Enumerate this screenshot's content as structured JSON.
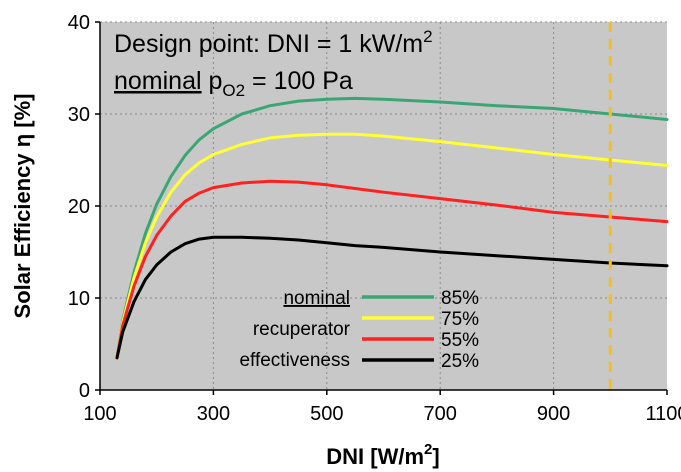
{
  "chart_data": {
    "type": "line",
    "xlabel": "DNI [W/m",
    "xlabel_sup": "2",
    "xlabel_end": "]",
    "ylabel": "Solar Efficiency η [%]",
    "xlim": [
      100,
      1100
    ],
    "ylim": [
      0,
      40
    ],
    "x_ticks": [
      "100",
      "300",
      "500",
      "700",
      "900",
      "1100"
    ],
    "y_ticks": [
      "0",
      "10",
      "20",
      "30",
      "40"
    ],
    "grid": true,
    "background": "#c8c8c8",
    "annotation": {
      "line1": "Design point: DNI = 1 kW/m",
      "line1_sup": "2",
      "line2_underlined": "nominal",
      "line2_p": "p",
      "line2_sub": "O2",
      "line2_rest": " = 100 Pa"
    },
    "design_point": {
      "x": 1000,
      "color": "#f0c020"
    },
    "legend_title": [
      "nominal",
      "recuperator",
      "effectiveness"
    ],
    "series": [
      {
        "name": "85%",
        "color": "#3aa676",
        "x": [
          130,
          140,
          160,
          180,
          200,
          225,
          250,
          275,
          300,
          350,
          400,
          450,
          500,
          550,
          600,
          700,
          800,
          900,
          1000,
          1100
        ],
        "values": [
          3.5,
          7.5,
          12.8,
          17.0,
          20.2,
          23.2,
          25.5,
          27.2,
          28.4,
          30.0,
          30.9,
          31.4,
          31.6,
          31.7,
          31.6,
          31.3,
          30.9,
          30.6,
          30.0,
          29.4
        ]
      },
      {
        "name": "75%",
        "color": "#ffff33",
        "x": [
          130,
          140,
          160,
          180,
          200,
          225,
          250,
          275,
          300,
          350,
          400,
          450,
          500,
          550,
          600,
          700,
          800,
          900,
          1000,
          1100
        ],
        "values": [
          3.5,
          7.3,
          12.2,
          16.0,
          18.8,
          21.5,
          23.4,
          24.7,
          25.6,
          26.7,
          27.4,
          27.7,
          27.8,
          27.8,
          27.6,
          27.0,
          26.3,
          25.6,
          25.0,
          24.4
        ]
      },
      {
        "name": "55%",
        "color": "#ff2020",
        "x": [
          130,
          140,
          160,
          180,
          200,
          225,
          250,
          275,
          300,
          350,
          400,
          450,
          500,
          550,
          600,
          700,
          800,
          900,
          1000,
          1100
        ],
        "values": [
          3.5,
          7.0,
          11.3,
          14.5,
          16.8,
          18.9,
          20.5,
          21.4,
          22.0,
          22.5,
          22.7,
          22.6,
          22.3,
          21.9,
          21.5,
          20.8,
          20.1,
          19.3,
          18.8,
          18.3
        ]
      },
      {
        "name": "25%",
        "color": "#000000",
        "x": [
          130,
          140,
          160,
          180,
          200,
          225,
          250,
          275,
          300,
          350,
          400,
          450,
          500,
          550,
          600,
          700,
          800,
          900,
          1000,
          1100
        ],
        "values": [
          3.5,
          6.3,
          9.6,
          12.0,
          13.6,
          15.0,
          15.9,
          16.4,
          16.6,
          16.6,
          16.5,
          16.3,
          16.0,
          15.7,
          15.5,
          15.0,
          14.6,
          14.2,
          13.8,
          13.5
        ]
      }
    ]
  }
}
